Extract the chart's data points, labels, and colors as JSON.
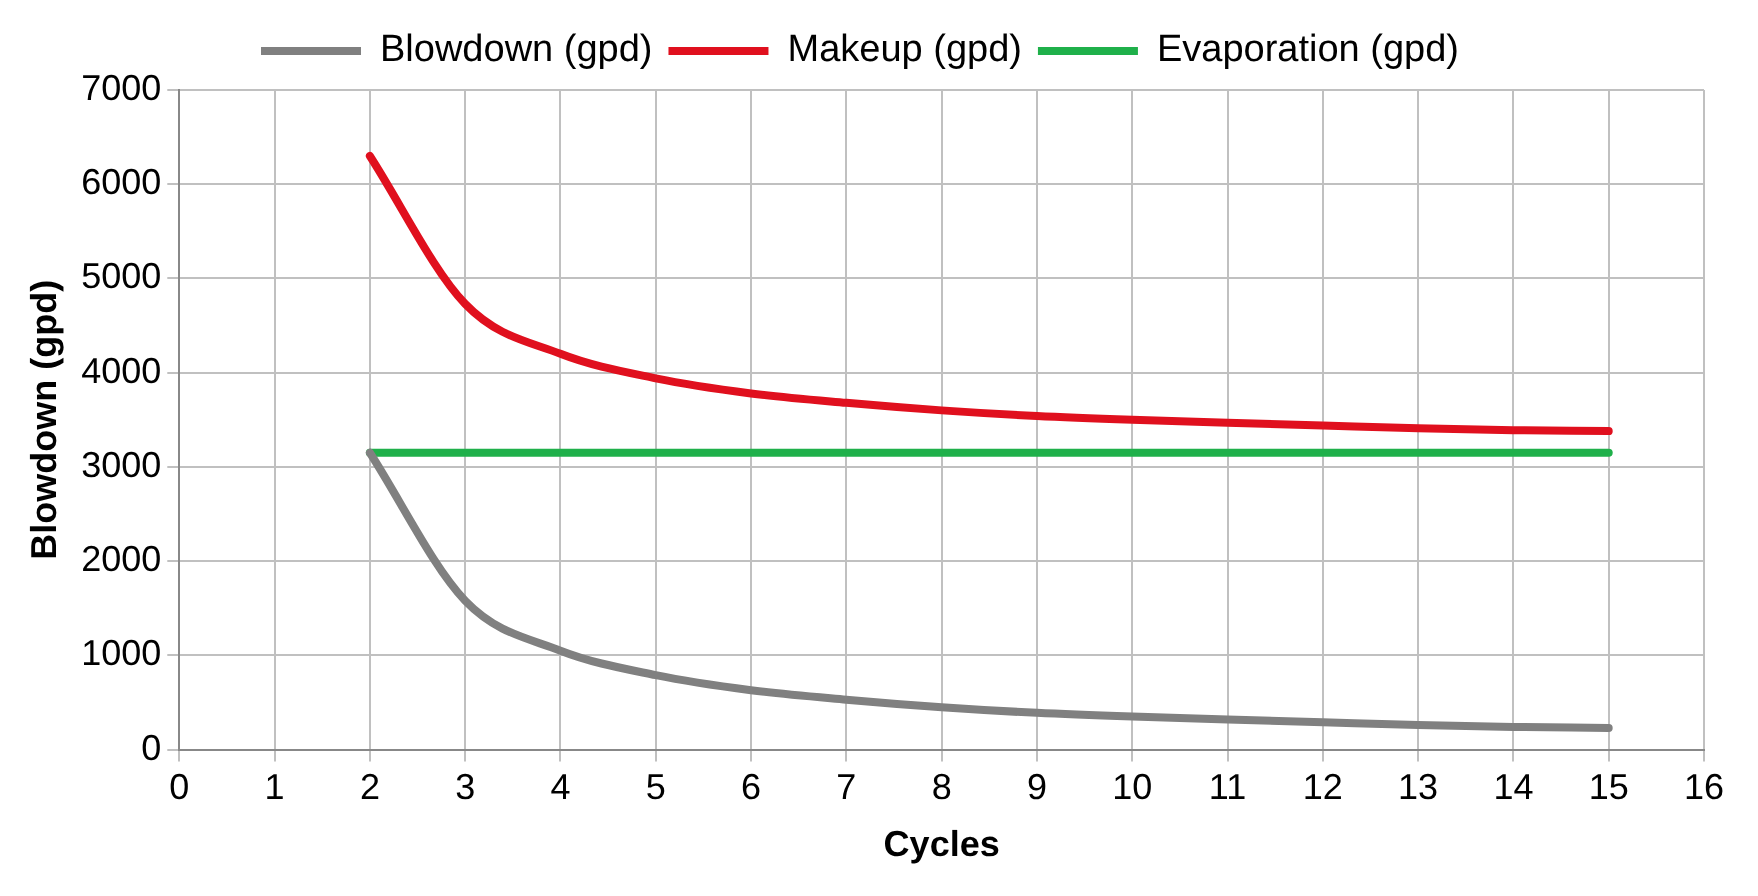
{
  "chart_data": {
    "type": "line",
    "xlabel": "Cycles",
    "ylabel": "Blowdown (gpd)",
    "x": [
      2,
      3,
      4,
      5,
      6,
      7,
      8,
      9,
      10,
      11,
      12,
      13,
      14,
      15
    ],
    "series": [
      {
        "name": "Blowdown (gpd)",
        "color": "#808080",
        "values": [
          3150,
          1580,
          1050,
          790,
          630,
          530,
          450,
          390,
          350,
          320,
          290,
          260,
          240,
          230
        ]
      },
      {
        "name": "Makeup (gpd)",
        "color": "#e0101e",
        "values": [
          6300,
          4730,
          4200,
          3940,
          3780,
          3680,
          3600,
          3540,
          3500,
          3470,
          3440,
          3410,
          3390,
          3380
        ]
      },
      {
        "name": "Evaporation (gpd)",
        "color": "#1fb04a",
        "values": [
          3150,
          3150,
          3150,
          3150,
          3150,
          3150,
          3150,
          3150,
          3150,
          3150,
          3150,
          3150,
          3150,
          3150
        ]
      }
    ],
    "xlim": [
      0,
      16
    ],
    "xticks": [
      0,
      1,
      2,
      3,
      4,
      5,
      6,
      7,
      8,
      9,
      10,
      11,
      12,
      13,
      14,
      15,
      16
    ],
    "ylim": [
      0,
      7000
    ],
    "yticks": [
      0,
      1000,
      2000,
      3000,
      4000,
      5000,
      6000,
      7000
    ],
    "grid": true,
    "legend": "top",
    "marker": "none",
    "line_style": "solid"
  }
}
